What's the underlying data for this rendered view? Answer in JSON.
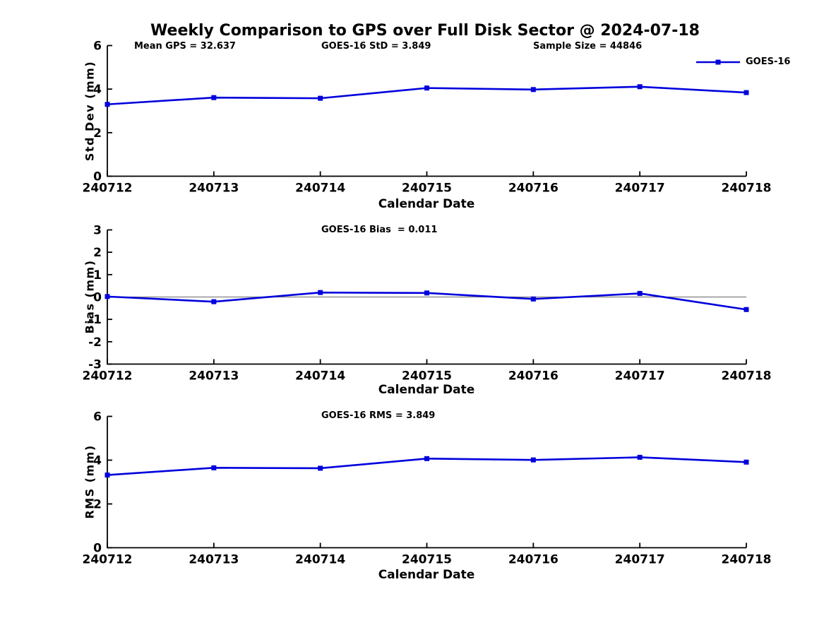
{
  "title": "Weekly Comparison to GPS over Full Disk Sector @ 2024-07-18",
  "legend": {
    "label": "GOES-16",
    "marker": "square",
    "line_color": "#0000dd"
  },
  "colors": {
    "series": "#0000dd",
    "zero_line": "#808080",
    "axis": "#000000",
    "text": "#000000",
    "background": "#ffffff"
  },
  "chart_data": [
    {
      "type": "line",
      "series_name": "GOES-16",
      "categories": [
        "240712",
        "240713",
        "240714",
        "240715",
        "240716",
        "240717",
        "240718"
      ],
      "values": [
        3.3,
        3.61,
        3.58,
        4.05,
        3.98,
        4.11,
        3.84
      ],
      "title": "",
      "annotations": [
        "Mean GPS = 32.637",
        "GOES-16 StD = 3.849",
        "Sample Size = 44846"
      ],
      "xlabel": "Calendar Date",
      "ylabel": "Std Dev (mm)",
      "ylim": [
        0,
        6
      ],
      "yticks": [
        "0",
        "2",
        "4",
        "6"
      ],
      "grid": false,
      "legend_position": "top-right",
      "zero_line": false
    },
    {
      "type": "line",
      "series_name": "GOES-16",
      "categories": [
        "240712",
        "240713",
        "240714",
        "240715",
        "240716",
        "240717",
        "240718"
      ],
      "values": [
        0.02,
        -0.21,
        0.2,
        0.18,
        -0.09,
        0.16,
        -0.56
      ],
      "title": "",
      "annotations": [
        "GOES-16 Bias  = 0.011"
      ],
      "xlabel": "Calendar Date",
      "ylabel": "Bias (mm)",
      "ylim": [
        -3,
        3
      ],
      "yticks": [
        "-3",
        "-2",
        "-1",
        "0",
        "1",
        "2",
        "3"
      ],
      "grid": false,
      "zero_line": true
    },
    {
      "type": "line",
      "series_name": "GOES-16",
      "categories": [
        "240712",
        "240713",
        "240714",
        "240715",
        "240716",
        "240717",
        "240718"
      ],
      "values": [
        3.32,
        3.65,
        3.63,
        4.07,
        4.01,
        4.13,
        3.91
      ],
      "title": "",
      "annotations": [
        "GOES-16 RMS = 3.849"
      ],
      "xlabel": "Calendar Date",
      "ylabel": "RMS (mm)",
      "ylim": [
        0,
        6
      ],
      "yticks": [
        "0",
        "2",
        "4",
        "6"
      ],
      "grid": false,
      "zero_line": false
    }
  ]
}
